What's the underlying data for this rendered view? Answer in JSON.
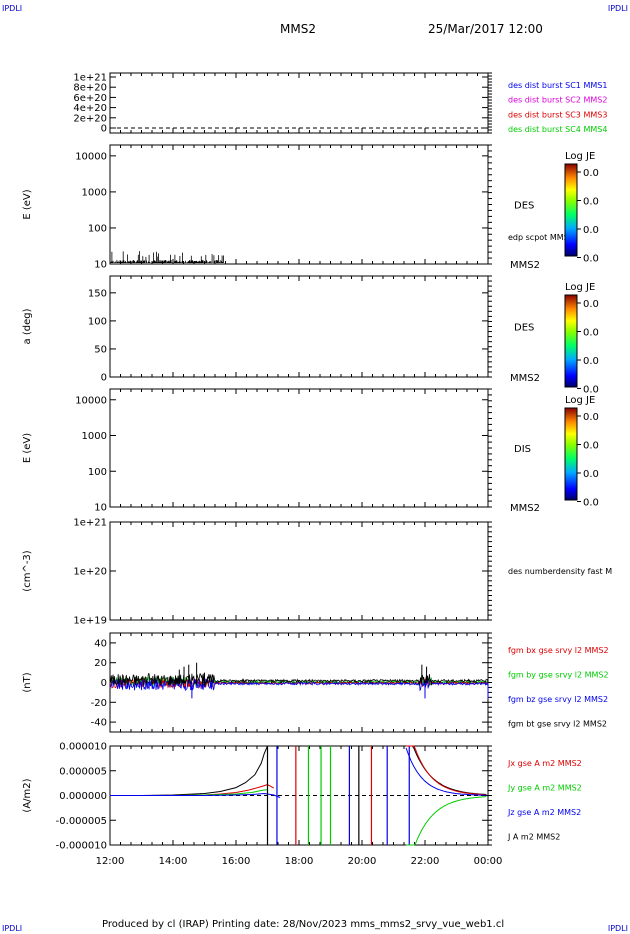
{
  "header": {
    "corner_tl": "IPDLI",
    "corner_tr": "IPDLI",
    "spacecraft": "MMS2",
    "datetime": "25/Mar/2017 12:00"
  },
  "footer": {
    "text": "Produced by cl (IRAP)   Printing date: 28/Nov/2023   mms_mms2_srvy_vue_web1.cl",
    "corner_bl": "IPDLI",
    "corner_br": "IPDLI"
  },
  "colors": {
    "black": "#000000",
    "red": "#dd0000",
    "green": "#00cc00",
    "blue": "#0000ee",
    "magenta": "#dd00dd"
  },
  "time_axis": {
    "ticks": [
      "12:00",
      "14:00",
      "16:00",
      "18:00",
      "20:00",
      "22:00",
      "00:00"
    ],
    "range_hours": [
      12,
      24
    ]
  },
  "chart_data": [
    {
      "type": "line",
      "id": "burst",
      "ylabel": "",
      "ylim": [
        0,
        1e+21
      ],
      "yticks": [
        "1e+21",
        "8e+20",
        "6e+20",
        "4e+20",
        "2e+20",
        "0"
      ],
      "legend": [
        {
          "label": "des dist burst SC1 MMS1",
          "color": "#0000ee"
        },
        {
          "label": "des dist burst SC2 MMS2",
          "color": "#dd00dd"
        },
        {
          "label": "des dist burst SC3 MMS3",
          "color": "#dd0000"
        },
        {
          "label": "des dist burst SC4 MMS4",
          "color": "#00cc00"
        }
      ],
      "series": [
        {
          "name": "des dist burst SC1 MMS1",
          "x": [
            12,
            24
          ],
          "y": [
            0,
            0
          ]
        }
      ]
    },
    {
      "type": "heatmap",
      "id": "des_energy",
      "ylabel": "E (eV)",
      "scale": "log",
      "ylim": [
        10,
        20000
      ],
      "yticks": [
        "10000",
        "1000",
        "100",
        "10"
      ],
      "side_label": "DES",
      "overlay_label": "edp scpot MMS2",
      "sc_label": "MMS2",
      "colorbar": {
        "title": "Log JE",
        "ticks": [
          "0.0",
          "0.0",
          "0.0",
          "0.0"
        ]
      },
      "scpot_hours": [
        12.0,
        15.6
      ]
    },
    {
      "type": "heatmap",
      "id": "des_pitch",
      "ylabel": "a (deg)",
      "ylim": [
        0,
        180
      ],
      "yticks": [
        "150",
        "100",
        "50",
        "0"
      ],
      "side_label": "DES",
      "sc_label": "MMS2",
      "colorbar": {
        "title": "Log JE",
        "ticks": [
          "0.0",
          "0.0",
          "0.0",
          "0.0"
        ]
      }
    },
    {
      "type": "heatmap",
      "id": "dis_energy",
      "ylabel": "E (eV)",
      "scale": "log",
      "ylim": [
        10,
        20000
      ],
      "yticks": [
        "10000",
        "1000",
        "100",
        "10"
      ],
      "side_label": "DIS",
      "sc_label": "MMS2",
      "colorbar": {
        "title": "Log JE",
        "ticks": [
          "0.0",
          "0.0",
          "0.0",
          "0.0"
        ]
      }
    },
    {
      "type": "line",
      "id": "density",
      "ylabel": "(cm^-3)",
      "scale": "log",
      "ylim": [
        1e+19,
        1e+21
      ],
      "yticks": [
        "1e+21",
        "1e+20",
        "1e+19"
      ],
      "legend": [
        {
          "label": "des numberdensity fast M",
          "color": "#000000"
        }
      ]
    },
    {
      "type": "line",
      "id": "bfield",
      "ylabel": "(nT)",
      "ylim": [
        -50,
        50
      ],
      "yticks": [
        "40",
        "20",
        "0",
        "-20",
        "-40"
      ],
      "legend": [
        {
          "label": "fgm bx gse srvy l2 MMS2",
          "color": "#dd0000"
        },
        {
          "label": "fgm by gse srvy l2 MMS2",
          "color": "#00cc00"
        },
        {
          "label": "fgm bz gse srvy l2 MMS2",
          "color": "#0000ee"
        },
        {
          "label": "fgm bt gse srvy l2 MMS2",
          "color": "#000000"
        }
      ],
      "spikes": [
        {
          "x": 14.2,
          "y": 13
        },
        {
          "x": 14.35,
          "y": 16
        },
        {
          "x": 14.5,
          "y": 18
        },
        {
          "x": 14.75,
          "y": 20
        },
        {
          "x": 15.0,
          "y": 10
        },
        {
          "x": 21.9,
          "y": 18
        },
        {
          "x": 22.05,
          "y": 16
        },
        {
          "x": 24.0,
          "y": 22
        }
      ]
    },
    {
      "type": "line",
      "id": "current",
      "ylabel": "(A/m2)",
      "ylim": [
        -1e-05,
        1e-05
      ],
      "yticks": [
        "0.000010",
        "0.000005",
        "0.000000",
        "-0.000005",
        "-0.000010"
      ],
      "legend": [
        {
          "label": "Jx gse A m2 MMS2",
          "color": "#dd0000"
        },
        {
          "label": "Jy gse A m2 MMS2",
          "color": "#00cc00"
        },
        {
          "label": "Jz gse A m2 MMS2",
          "color": "#0000ee"
        },
        {
          "label": "J A m2 MMS2",
          "color": "#000000"
        }
      ],
      "series": [
        {
          "name": "J A m2 MMS2",
          "x": [
            12,
            13,
            14,
            15,
            15.5,
            16,
            16.3,
            16.6,
            16.8,
            16.9,
            17.0
          ],
          "y": [
            0.0,
            0.0,
            1e-07,
            4e-07,
            8e-07,
            1.6e-06,
            2.6e-06,
            4.2e-06,
            6.5e-06,
            8.5e-06,
            1e-05
          ]
        },
        {
          "name": "Jx gse A m2 MMS2",
          "x": [
            12,
            14,
            15,
            15.5,
            16,
            16.4,
            16.8,
            17.0,
            17.2
          ],
          "y": [
            0.0,
            0.0,
            1e-07,
            3e-07,
            6e-07,
            1.1e-06,
            1.8e-06,
            2.2e-06,
            1.5e-06
          ]
        },
        {
          "name": "Jy gse A m2 MMS2",
          "x": [
            12,
            14,
            15,
            16,
            16.5,
            16.8,
            17.0
          ],
          "y": [
            0.0,
            0.0,
            1e-07,
            3e-07,
            6e-07,
            1e-06,
            1.2e-06
          ]
        },
        {
          "name": "Jz gse A m2 MMS2",
          "x": [
            12,
            14,
            15,
            16,
            16.5,
            16.9,
            17.2,
            17.4
          ],
          "y": [
            0.0,
            0.0,
            0.0,
            1e-07,
            2e-07,
            4e-07,
            1e-07,
            -4e-07
          ]
        }
      ]
    }
  ]
}
